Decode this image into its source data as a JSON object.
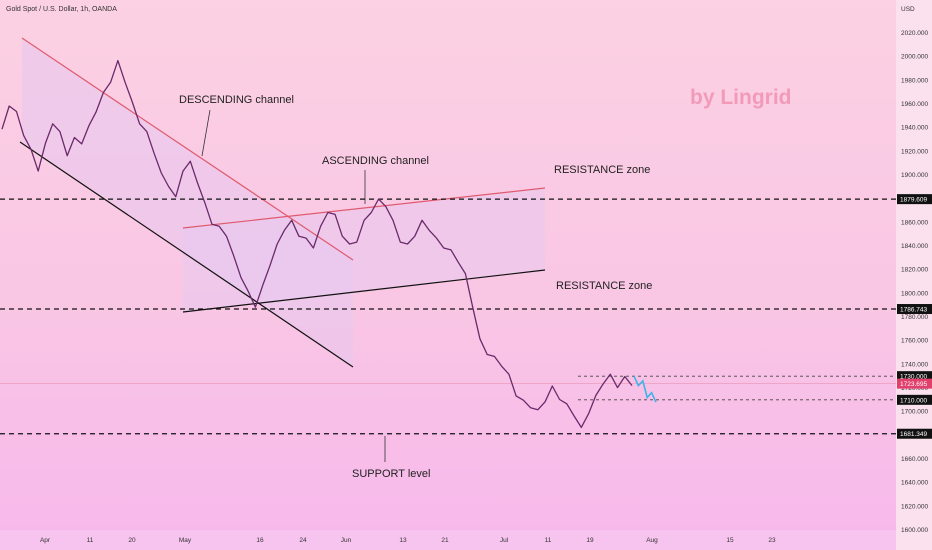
{
  "header": {
    "symbol": "Gold Spot / U.S. Dollar, 1h, OANDA"
  },
  "watermark": "by Lingrid",
  "currency": "USD",
  "annotations": {
    "descending": "DESCENDING channel",
    "ascending": "ASCENDING channel",
    "resistance1": "RESISTANCE zone",
    "resistance2": "RESISTANCE zone",
    "support": "SUPPORT level"
  },
  "chart_data": {
    "type": "line",
    "x_tick_labels": [
      "Apr",
      "11",
      "20",
      "May",
      "16",
      "24",
      "Jun",
      "13",
      "21",
      "Jul",
      "11",
      "19",
      "Aug",
      "15",
      "23"
    ],
    "y_tick_labels": [
      "1600.000",
      "1620.000",
      "1640.000",
      "1660.000",
      "1680.000",
      "1700.000",
      "1720.000",
      "1740.000",
      "1760.000",
      "1780.000",
      "1800.000",
      "1820.000",
      "1840.000",
      "1860.000",
      "1880.000",
      "1900.000",
      "1920.000",
      "1940.000",
      "1960.000",
      "1980.000",
      "2000.000",
      "2020.000"
    ],
    "ylim": [
      1598,
      2040
    ],
    "levels": [
      {
        "label": "1879.609",
        "value": 1879.609
      },
      {
        "label": "1786.743",
        "value": 1786.743
      },
      {
        "label": "1730.000",
        "value": 1730.0
      },
      {
        "label": "1723.695",
        "value": 1723.695
      },
      {
        "label": "1710.000",
        "value": 1710.0
      },
      {
        "label": "1681.349",
        "value": 1681.349
      }
    ],
    "series": [
      {
        "values": [
          1937,
          1960,
          1952,
          1935,
          1920,
          1905,
          1925,
          1945,
          1935,
          1918,
          1930,
          1928,
          1940,
          1955,
          1968,
          1980,
          1995,
          1980,
          1960,
          1945,
          1935,
          1920,
          1900,
          1892,
          1880,
          1905,
          1910,
          1895,
          1875,
          1860,
          1855,
          1850,
          1830,
          1815,
          1800,
          1790,
          1805,
          1825,
          1840,
          1855,
          1860,
          1850,
          1845,
          1840,
          1855,
          1870,
          1865,
          1850,
          1840,
          1845,
          1860,
          1870,
          1878,
          1875,
          1860,
          1845,
          1840,
          1850,
          1860,
          1855,
          1845,
          1840,
          1835,
          1828,
          1815,
          1790,
          1760,
          1750,
          1745,
          1740,
          1730,
          1715,
          1708,
          1705,
          1700,
          1710,
          1720,
          1712,
          1705,
          1698,
          1685,
          1700,
          1712,
          1725,
          1730,
          1722,
          1728,
          1723.695
        ],
        "color": "#6a2a6a"
      },
      {
        "values": [
          1730,
          1722,
          1726,
          1712,
          1716,
          1708
        ],
        "color": "#3fb3e8"
      }
    ]
  }
}
